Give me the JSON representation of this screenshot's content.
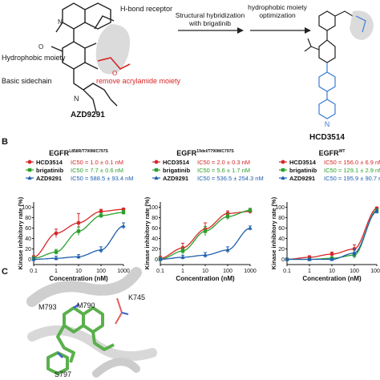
{
  "panel_a": {
    "labels": {
      "hbond": "H-bond receptor",
      "hydrophobic": "Hydrophobic moiety",
      "remove": "remove acrylamide moiety",
      "basic": "Basic sidechain",
      "azd": "AZD9291",
      "hcd": "HCD3514",
      "arrow1_line1": "Structural hybridization",
      "arrow1_line2": "with brigatinib",
      "arrow2_line1": "hydrophobic moiety",
      "arrow2_line2": "optimization"
    }
  },
  "panel_b_label": "B",
  "panel_c_label": "C",
  "panel_c_residues": [
    "M793",
    "M790",
    "K745",
    "S797"
  ],
  "colors": {
    "hcd": "#d62728",
    "brig": "#2ca02c",
    "azd": "#1f5fae",
    "red_text": "#d62728"
  },
  "chart_data": [
    {
      "type": "line",
      "title": "EGFR",
      "title_sup": "L858R/T790M/C797S",
      "xlabel": "Concentration (nM)",
      "ylabel": "Kinase inhibitory rate (%)",
      "xscale": "log",
      "xlim": [
        0.1,
        1000
      ],
      "ylim": [
        -10,
        110
      ],
      "xticks": [
        "0.1",
        "1",
        "10",
        "100",
        "1000"
      ],
      "yticks": [
        "0",
        "20",
        "40",
        "60",
        "80",
        "100"
      ],
      "legend": [
        {
          "name": "HCD3514",
          "ic50": "IC50 = 1.0 ± 0.1 nM"
        },
        {
          "name": "brigatinib",
          "ic50": "IC50 = 7.7 ± 0.6 nM"
        },
        {
          "name": "AZD9291",
          "ic50": "IC50 = 588.5 ± 93.4 nM"
        }
      ],
      "series": [
        {
          "name": "HCD3514",
          "marker": "circle",
          "x": [
            0.1,
            1,
            10,
            100,
            1000
          ],
          "y": [
            4,
            50,
            70,
            92,
            96
          ],
          "err": [
            3,
            8,
            18,
            4,
            2
          ]
        },
        {
          "name": "brigatinib",
          "marker": "square",
          "x": [
            0.1,
            1,
            10,
            100,
            1000
          ],
          "y": [
            2,
            14,
            54,
            84,
            90
          ],
          "err": [
            3,
            5,
            8,
            5,
            4
          ]
        },
        {
          "name": "AZD9291",
          "marker": "triangle",
          "x": [
            0.1,
            1,
            10,
            100,
            1000
          ],
          "y": [
            0,
            2,
            5,
            18,
            64
          ],
          "err": [
            3,
            4,
            4,
            6,
            6
          ]
        }
      ]
    },
    {
      "type": "line",
      "title": "EGFR",
      "title_sup": "19del/T790M/C797S",
      "xlabel": "Concentration (nM)",
      "ylabel": "Kinase inhibitory rate (%)",
      "xscale": "log",
      "xlim": [
        0.1,
        1000
      ],
      "ylim": [
        -10,
        110
      ],
      "xticks": [
        "0.1",
        "1",
        "10",
        "100",
        "1000"
      ],
      "yticks": [
        "0",
        "20",
        "40",
        "60",
        "80",
        "100"
      ],
      "legend": [
        {
          "name": "HCD3514",
          "ic50": "IC50 = 2.0 ± 0.3 nM"
        },
        {
          "name": "brigatinib",
          "ic50": "IC50 = 5.6 ± 1.7 nM"
        },
        {
          "name": "AZD9291",
          "ic50": "IC50 = 536.5 ± 254.3 nM"
        }
      ],
      "series": [
        {
          "name": "HCD3514",
          "marker": "circle",
          "x": [
            0.1,
            1,
            10,
            100,
            1000
          ],
          "y": [
            2,
            22,
            58,
            88,
            92
          ],
          "err": [
            4,
            9,
            12,
            5,
            4
          ]
        },
        {
          "name": "brigatinib",
          "marker": "square",
          "x": [
            0.1,
            1,
            10,
            100,
            1000
          ],
          "y": [
            0,
            16,
            54,
            82,
            94
          ],
          "err": [
            4,
            6,
            9,
            6,
            4
          ]
        },
        {
          "name": "AZD9291",
          "marker": "triangle",
          "x": [
            0.1,
            1,
            10,
            100,
            1000
          ],
          "y": [
            0,
            4,
            8,
            18,
            60
          ],
          "err": [
            3,
            4,
            5,
            6,
            4
          ]
        }
      ]
    },
    {
      "type": "line",
      "title": "EGFR",
      "title_sup": "WT",
      "xlabel": "Concentration (nM)",
      "ylabel": "Kinase inhibitory rate (%)",
      "xscale": "log",
      "xlim": [
        0.1,
        1000
      ],
      "ylim": [
        -10,
        110
      ],
      "xticks": [
        "0.1",
        "1",
        "10",
        "100",
        "1000"
      ],
      "yticks": [
        "0",
        "20",
        "40",
        "60",
        "80",
        "100"
      ],
      "legend": [
        {
          "name": "HCD3514",
          "ic50": "IC50 = 156.0 ± 6.9 nM"
        },
        {
          "name": "brigatinib",
          "ic50": "IC50 = 129.1 ± 2.9 nM"
        },
        {
          "name": "AZD9291",
          "ic50": "IC50 = 195.9 ± 90.7 nM"
        }
      ],
      "series": [
        {
          "name": "HCD3514",
          "marker": "circle",
          "x": [
            0.1,
            1,
            10,
            100,
            1000
          ],
          "y": [
            0,
            4,
            10,
            20,
            98
          ],
          "err": [
            2,
            3,
            4,
            8,
            2
          ]
        },
        {
          "name": "brigatinib",
          "marker": "square",
          "x": [
            0.1,
            1,
            10,
            100,
            1000
          ],
          "y": [
            0,
            0,
            2,
            8,
            94
          ],
          "err": [
            2,
            2,
            3,
            6,
            3
          ]
        },
        {
          "name": "AZD9291",
          "marker": "triangle",
          "x": [
            0.1,
            1,
            10,
            100,
            1000
          ],
          "y": [
            0,
            0,
            0,
            12,
            92
          ],
          "err": [
            2,
            2,
            2,
            8,
            4
          ]
        }
      ]
    }
  ]
}
